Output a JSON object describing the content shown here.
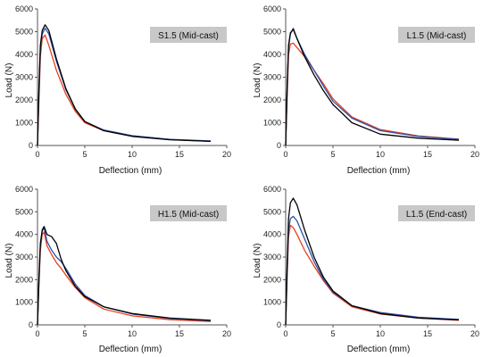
{
  "colors": {
    "black": "#000000",
    "blue": "#2f4faa",
    "red": "#e8401c",
    "tag": "#c8c8c8"
  },
  "chart_data": [
    {
      "type": "line",
      "title": "S1.5 (Mid-cast)",
      "xlabel": "Deflection (mm)",
      "ylabel": "Load (N)",
      "xlim": [
        0,
        20
      ],
      "ylim": [
        0,
        6000
      ],
      "xticks": [
        0,
        5,
        10,
        15,
        20
      ],
      "yticks": [
        0,
        1000,
        2000,
        3000,
        4000,
        5000,
        6000
      ],
      "grid": false,
      "series": [
        {
          "color": "black",
          "x": [
            0,
            0.15,
            0.3,
            0.5,
            0.8,
            1.2,
            2,
            3,
            4,
            5,
            7,
            10,
            14,
            18.3
          ],
          "y": [
            0,
            2500,
            4400,
            5050,
            5300,
            5050,
            3800,
            2500,
            1600,
            1050,
            650,
            400,
            250,
            180
          ]
        },
        {
          "color": "blue",
          "x": [
            0,
            0.15,
            0.3,
            0.5,
            0.8,
            1.2,
            2,
            3,
            4,
            5,
            7,
            10,
            14,
            18.3
          ],
          "y": [
            0,
            2300,
            4200,
            4900,
            5150,
            4900,
            3700,
            2450,
            1600,
            1050,
            680,
            430,
            270,
            200
          ]
        },
        {
          "color": "red",
          "x": [
            0,
            0.15,
            0.3,
            0.5,
            0.8,
            1.2,
            2,
            3,
            4,
            5,
            7,
            10,
            14,
            18.3
          ],
          "y": [
            0,
            2000,
            3900,
            4700,
            4850,
            4400,
            3300,
            2250,
            1500,
            1000,
            650,
            420,
            260,
            180
          ]
        }
      ]
    },
    {
      "type": "line",
      "title": "L1.5 (Mid-cast)",
      "xlabel": "Deflection (mm)",
      "ylabel": "Load (N)",
      "xlim": [
        0,
        20
      ],
      "ylim": [
        0,
        6000
      ],
      "xticks": [
        0,
        5,
        10,
        15,
        20
      ],
      "yticks": [
        0,
        1000,
        2000,
        3000,
        4000,
        5000,
        6000
      ],
      "grid": false,
      "series": [
        {
          "color": "black",
          "x": [
            0,
            0.15,
            0.3,
            0.5,
            0.8,
            1.2,
            2,
            3,
            4,
            5,
            7,
            10,
            14,
            18.3
          ],
          "y": [
            0,
            2500,
            4400,
            4950,
            5100,
            4700,
            3900,
            3100,
            2400,
            1800,
            1000,
            500,
            320,
            230
          ]
        },
        {
          "color": "blue",
          "x": [
            0,
            0.15,
            0.3,
            0.5,
            0.8,
            1.2,
            2,
            3,
            4,
            5,
            7,
            10,
            14,
            18.3
          ],
          "y": [
            0,
            2400,
            4300,
            4900,
            5150,
            4700,
            4000,
            3300,
            2600,
            1950,
            1200,
            650,
            400,
            270
          ]
        },
        {
          "color": "red",
          "x": [
            0,
            0.15,
            0.3,
            0.5,
            0.8,
            1.2,
            2,
            3,
            4,
            5,
            7,
            10,
            14,
            18.3
          ],
          "y": [
            0,
            2100,
            4000,
            4450,
            4500,
            4300,
            3900,
            3300,
            2700,
            2050,
            1250,
            700,
            420,
            280
          ]
        }
      ]
    },
    {
      "type": "line",
      "title": "H1.5 (Mid-cast)",
      "xlabel": "Deflection (mm)",
      "ylabel": "Load (N)",
      "xlim": [
        0,
        20
      ],
      "ylim": [
        0,
        6000
      ],
      "xticks": [
        0,
        5,
        10,
        15,
        20
      ],
      "yticks": [
        0,
        1000,
        2000,
        3000,
        4000,
        5000,
        6000
      ],
      "grid": false,
      "series": [
        {
          "color": "black",
          "x": [
            0,
            0.15,
            0.3,
            0.5,
            0.7,
            1,
            1.5,
            2,
            2.5,
            3,
            4,
            5,
            7,
            10,
            14,
            18.3
          ],
          "y": [
            0,
            2000,
            3600,
            4200,
            4350,
            4000,
            3900,
            3600,
            2900,
            2400,
            1700,
            1250,
            800,
            500,
            300,
            200
          ]
        },
        {
          "color": "blue",
          "x": [
            0,
            0.15,
            0.3,
            0.5,
            0.7,
            1,
            1.5,
            2,
            2.5,
            3,
            4,
            5,
            7,
            10,
            14,
            18.3
          ],
          "y": [
            0,
            1900,
            3500,
            4150,
            4300,
            3700,
            3300,
            3000,
            2800,
            2500,
            1800,
            1300,
            800,
            480,
            280,
            180
          ]
        },
        {
          "color": "red",
          "x": [
            0,
            0.15,
            0.3,
            0.5,
            0.7,
            1,
            1.5,
            2,
            2.5,
            3,
            4,
            5,
            7,
            10,
            14,
            18.3
          ],
          "y": [
            0,
            1800,
            3300,
            4000,
            4100,
            3500,
            3100,
            2750,
            2500,
            2200,
            1650,
            1200,
            700,
            400,
            230,
            150
          ]
        }
      ]
    },
    {
      "type": "line",
      "title": "L1.5 (End-cast)",
      "xlabel": "Deflection (mm)",
      "ylabel": "Load (N)",
      "xlim": [
        0,
        20
      ],
      "ylim": [
        0,
        6000
      ],
      "xticks": [
        0,
        5,
        10,
        15,
        20
      ],
      "yticks": [
        0,
        1000,
        2000,
        3000,
        4000,
        5000,
        6000
      ],
      "grid": false,
      "series": [
        {
          "color": "black",
          "x": [
            0,
            0.15,
            0.3,
            0.5,
            0.8,
            1.2,
            2,
            3,
            4,
            5,
            7,
            10,
            14,
            18.3
          ],
          "y": [
            0,
            2600,
            4700,
            5400,
            5600,
            5300,
            4200,
            3000,
            2100,
            1500,
            850,
            500,
            300,
            220
          ]
        },
        {
          "color": "blue",
          "x": [
            0,
            0.15,
            0.3,
            0.5,
            0.8,
            1.2,
            2,
            3,
            4,
            5,
            7,
            10,
            14,
            18.3
          ],
          "y": [
            0,
            2300,
            4200,
            4700,
            4800,
            4600,
            3800,
            2800,
            2000,
            1450,
            850,
            550,
            340,
            240
          ]
        },
        {
          "color": "red",
          "x": [
            0,
            0.15,
            0.3,
            0.5,
            0.8,
            1.2,
            2,
            3,
            4,
            5,
            7,
            10,
            14,
            18.3
          ],
          "y": [
            0,
            2100,
            3900,
            4400,
            4300,
            4000,
            3300,
            2600,
            1950,
            1400,
            800,
            480,
            300,
            200
          ]
        }
      ]
    }
  ]
}
